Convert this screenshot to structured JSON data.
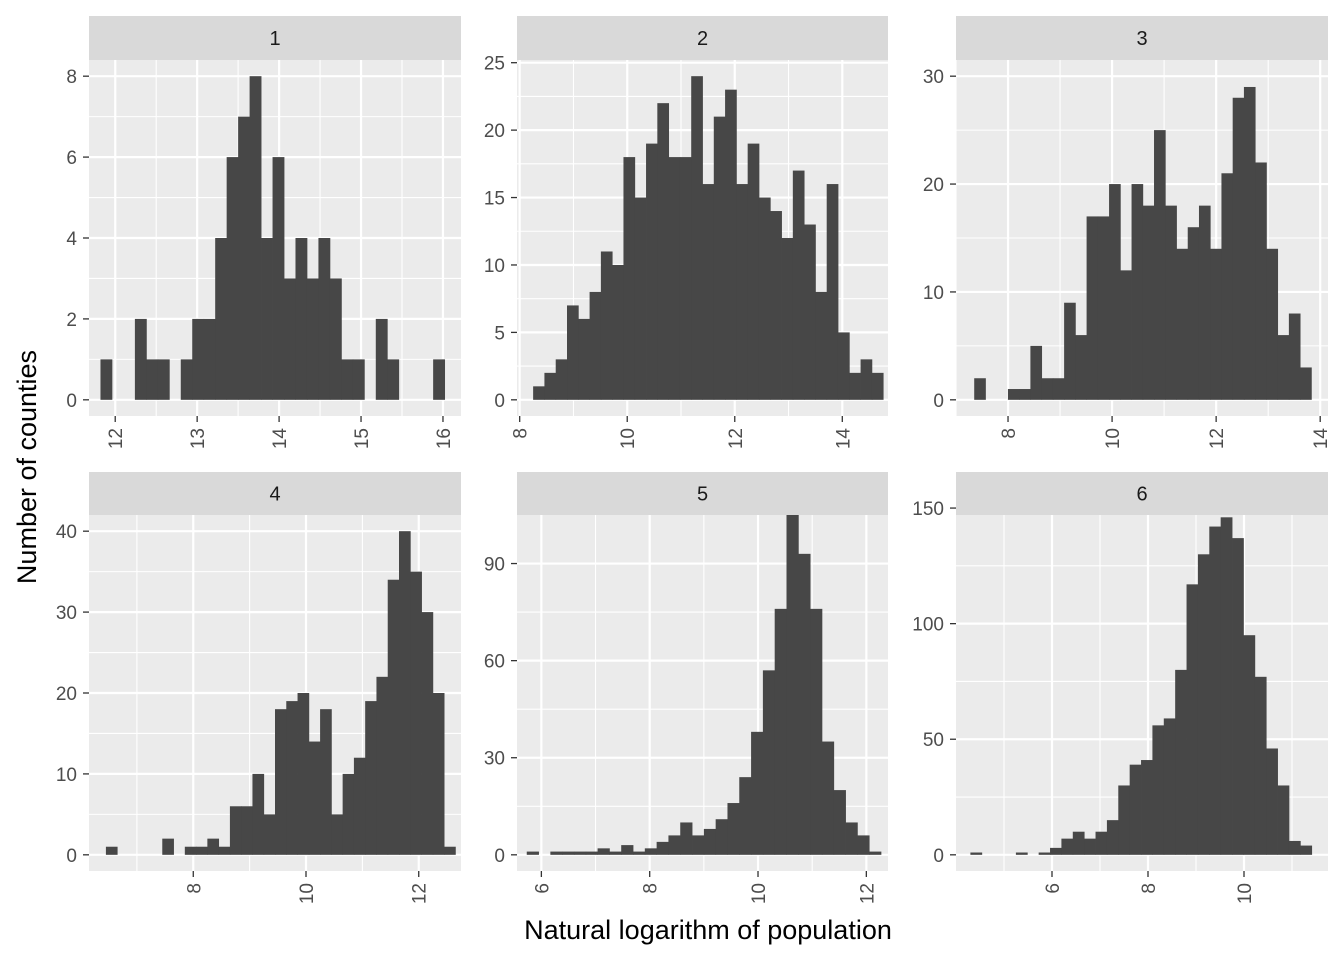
{
  "chart_data": {
    "type": "bar",
    "subtype": "faceted-histogram",
    "xlabel": "Natural logarithm of population",
    "ylabel": "Number of counties",
    "grid": true,
    "legend": "none",
    "colors": {
      "bar": "#474747",
      "panel": "#ebebeb",
      "strip": "#d9d9d9",
      "grid": "#ffffff",
      "tick": "#333333",
      "tick_text": "#4d4d4d"
    },
    "facets": [
      {
        "label": "1",
        "xlim": [
          11.68,
          16.22
        ],
        "ylim": [
          -0.4,
          8.4
        ],
        "xticks": [
          12,
          13,
          14,
          15,
          16
        ],
        "yticks": [
          0,
          2,
          4,
          6,
          8
        ],
        "x_start": 11.82,
        "bin_width": 0.14,
        "counts": [
          1,
          0,
          0,
          2,
          1,
          1,
          0,
          1,
          2,
          2,
          4,
          6,
          7,
          8,
          4,
          6,
          3,
          4,
          3,
          4,
          3,
          1,
          1,
          0,
          2,
          1,
          0,
          0,
          0,
          1
        ]
      },
      {
        "label": "2",
        "xlim": [
          7.95,
          14.85
        ],
        "ylim": [
          -1.2,
          25.2
        ],
        "xticks": [
          8,
          10,
          12,
          14
        ],
        "yticks": [
          0,
          5,
          10,
          15,
          20,
          25
        ],
        "x_start": 8.25,
        "bin_width": 0.21,
        "counts": [
          1,
          2,
          3,
          7,
          6,
          8,
          11,
          10,
          18,
          15,
          19,
          22,
          18,
          18,
          24,
          16,
          21,
          23,
          16,
          19,
          15,
          14,
          12,
          17,
          13,
          8,
          16,
          5,
          2,
          3,
          2
        ]
      },
      {
        "label": "3",
        "xlim": [
          7.0,
          14.15
        ],
        "ylim": [
          -1.5,
          31.5
        ],
        "xticks": [
          8,
          10,
          12,
          14
        ],
        "yticks": [
          0,
          10,
          20,
          30
        ],
        "x_start": 7.35,
        "bin_width": 0.216,
        "counts": [
          2,
          0,
          0,
          1,
          1,
          5,
          2,
          2,
          9,
          6,
          17,
          17,
          20,
          12,
          20,
          18,
          25,
          18,
          14,
          16,
          18,
          14,
          21,
          28,
          29,
          22,
          14,
          6,
          8,
          3
        ]
      },
      {
        "label": "4",
        "xlim": [
          6.15,
          12.75
        ],
        "ylim": [
          -2.0,
          42.0
        ],
        "xticks": [
          8,
          10,
          12
        ],
        "yticks": [
          0,
          10,
          20,
          30,
          40
        ],
        "x_start": 6.45,
        "bin_width": 0.2,
        "counts": [
          1,
          0,
          0,
          0,
          0,
          2,
          0,
          1,
          1,
          2,
          1,
          6,
          6,
          10,
          5,
          18,
          19,
          20,
          14,
          18,
          5,
          10,
          12,
          19,
          22,
          34,
          40,
          35,
          30,
          20,
          1
        ]
      },
      {
        "label": "5",
        "xlim": [
          5.55,
          12.4
        ],
        "ylim": [
          -5.0,
          105.0
        ],
        "xticks": [
          6,
          8,
          10,
          12
        ],
        "yticks": [
          0,
          30,
          60,
          90
        ],
        "x_start": 5.73,
        "bin_width": 0.218,
        "counts": [
          1,
          0,
          1,
          1,
          1,
          1,
          2,
          1,
          3,
          1,
          2,
          4,
          6,
          10,
          6,
          8,
          11,
          16,
          24,
          38,
          57,
          76,
          108,
          93,
          76,
          35,
          20,
          10,
          6,
          1
        ]
      },
      {
        "label": "6",
        "xlim": [
          4.0,
          11.75
        ],
        "ylim": [
          -7.0,
          147.0
        ],
        "xticks": [
          6,
          8,
          10
        ],
        "yticks": [
          0,
          50,
          100,
          150
        ],
        "x_start": 4.3,
        "bin_width": 0.237,
        "counts": [
          1,
          0,
          0,
          0,
          1,
          0,
          1,
          3,
          7,
          10,
          7,
          10,
          15,
          30,
          39,
          41,
          56,
          59,
          80,
          117,
          130,
          142,
          146,
          137,
          95,
          77,
          46,
          30,
          6,
          4
        ]
      }
    ]
  }
}
